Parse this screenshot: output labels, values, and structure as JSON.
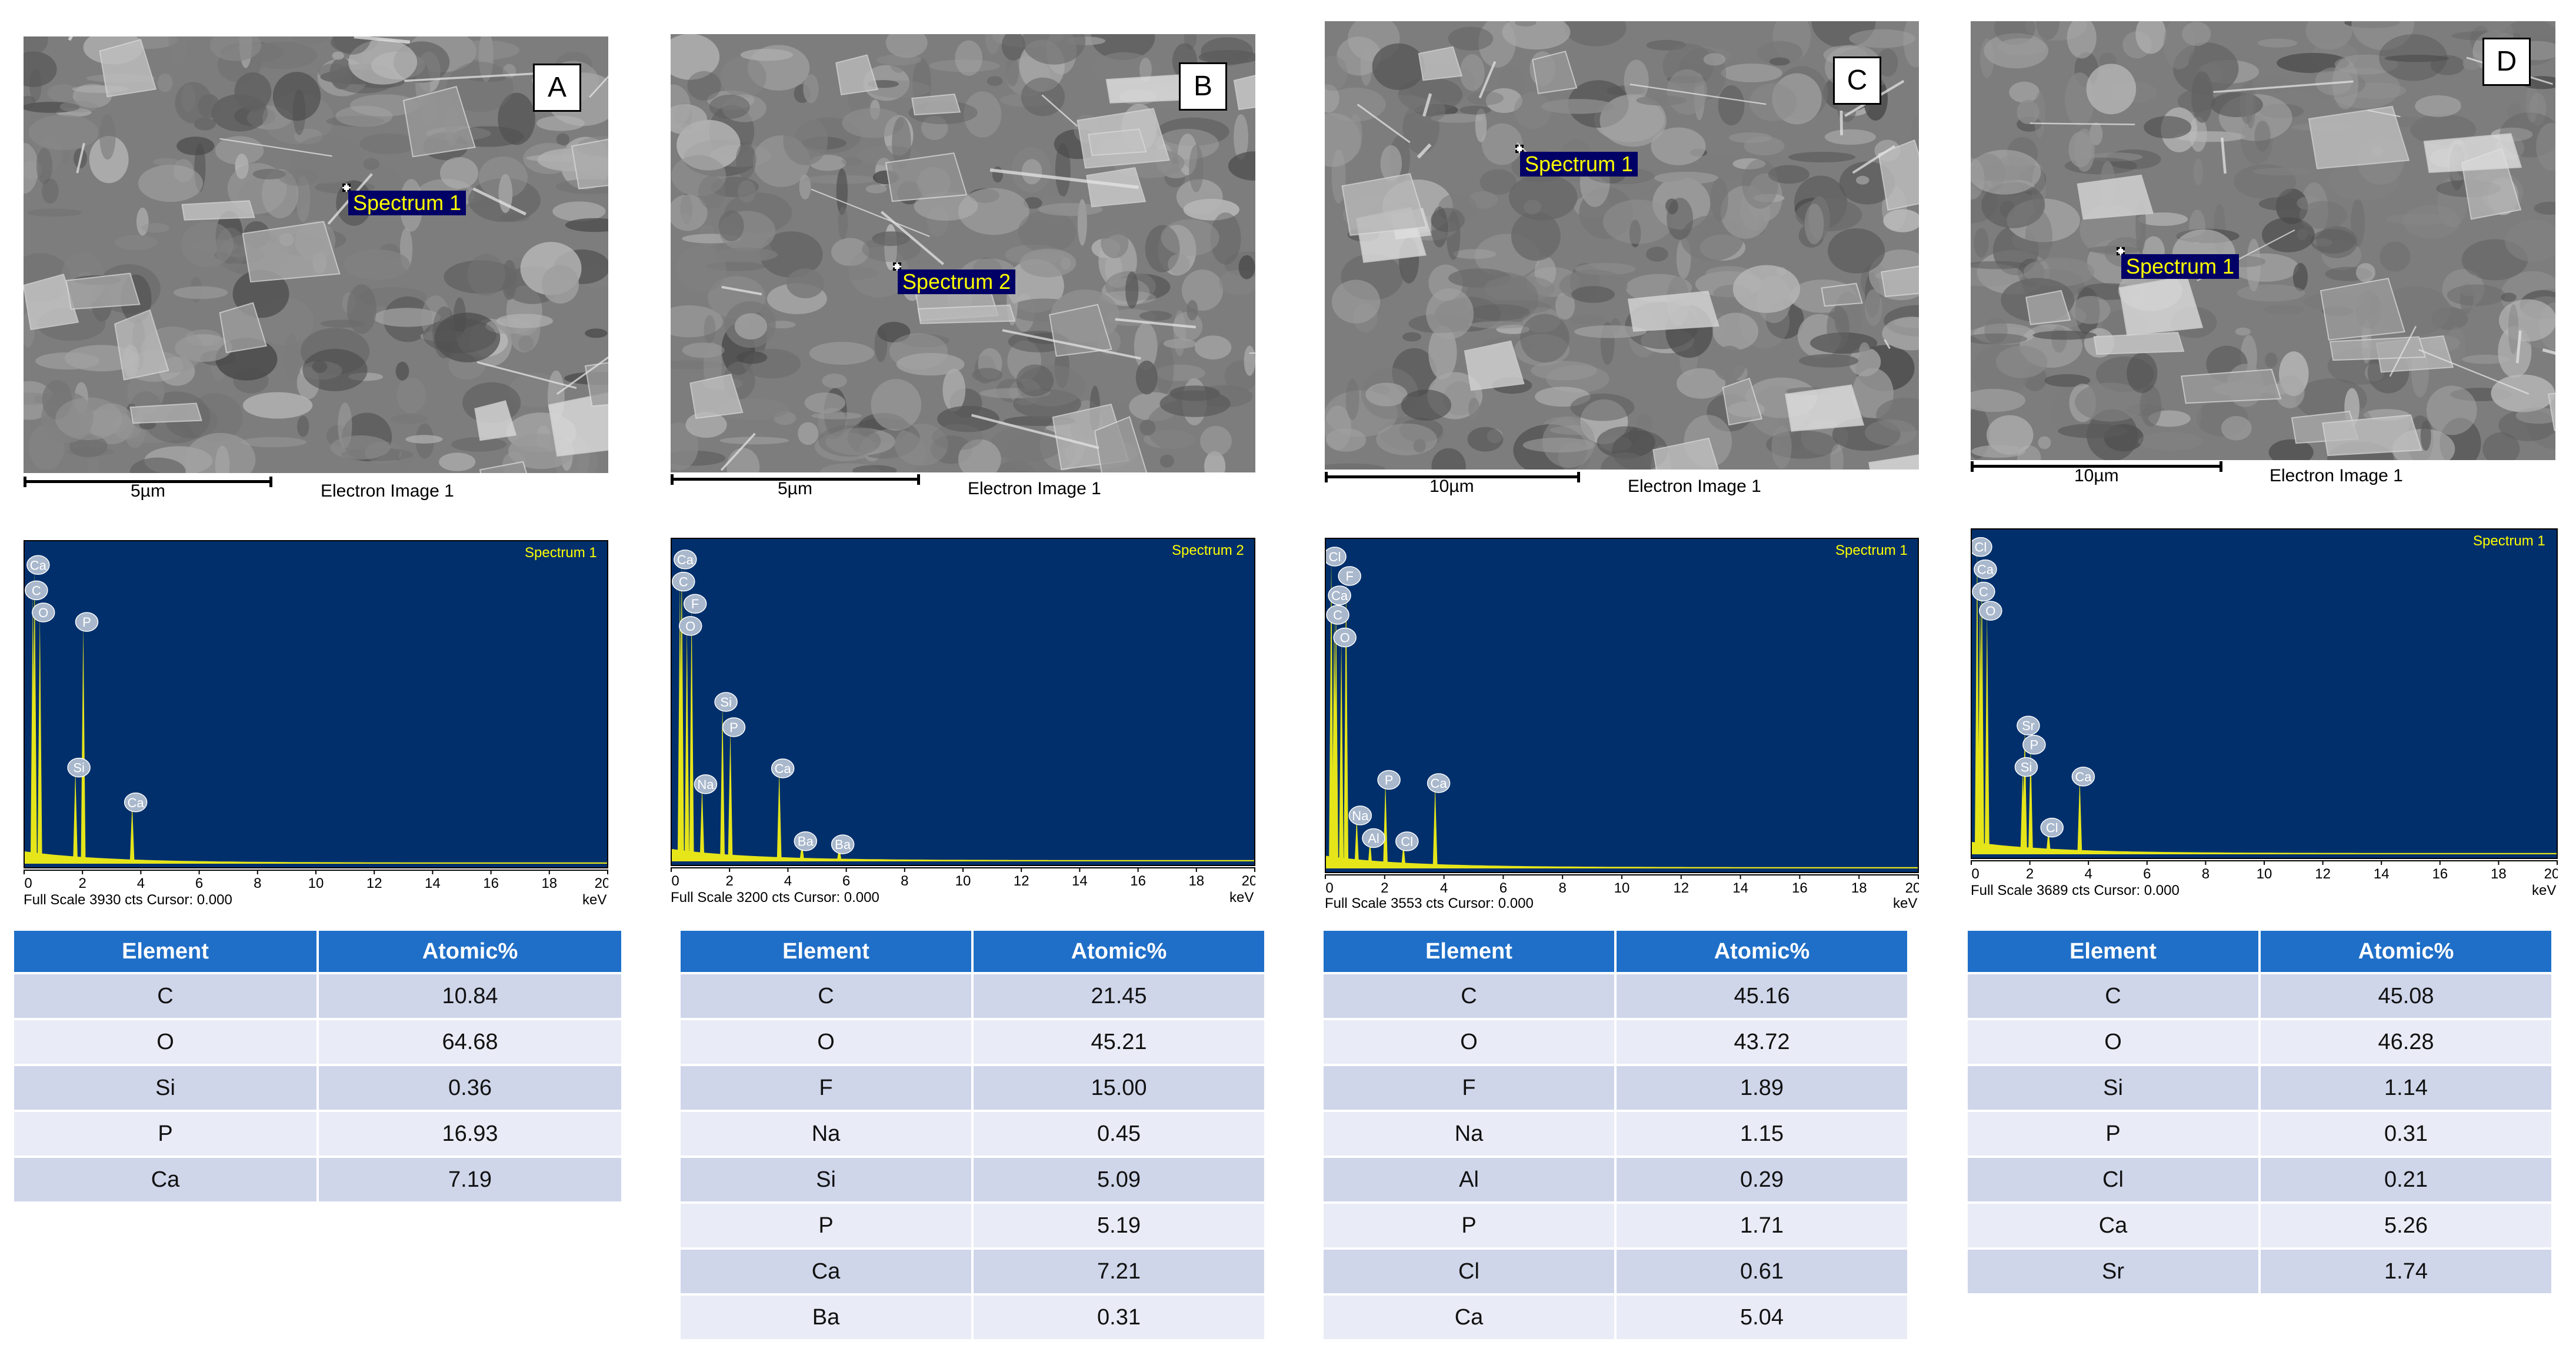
{
  "panels": [
    {
      "letter": "A",
      "spectrum_tag": "Spectrum 1",
      "scale_label": "5µm",
      "image_label": "Electron Image 1",
      "spectrum": {
        "title": "Spectrum 1",
        "footer": "Full Scale 3930 cts Cursor: 0.000",
        "unit": "keV",
        "peaks": [
          {
            "el": "Ca",
            "e": 0.34,
            "h": 0.94
          },
          {
            "el": "C",
            "e": 0.28,
            "h": 0.86
          },
          {
            "el": "O",
            "e": 0.52,
            "h": 0.79
          },
          {
            "el": "P",
            "e": 2.01,
            "h": 0.76
          },
          {
            "el": "Si",
            "e": 1.74,
            "h": 0.3
          },
          {
            "el": "Ca",
            "e": 3.69,
            "h": 0.19
          }
        ]
      },
      "table": {
        "headers": [
          "Element",
          "Atomic%"
        ],
        "rows": [
          [
            "C",
            "10.84"
          ],
          [
            "O",
            "64.68"
          ],
          [
            "Si",
            "0.36"
          ],
          [
            "P",
            "16.93"
          ],
          [
            "Ca",
            "7.19"
          ]
        ]
      }
    },
    {
      "letter": "B",
      "spectrum_tag": "Spectrum 2",
      "scale_label": "5µm",
      "image_label": "Electron Image 1",
      "spectrum": {
        "title": "Spectrum 2",
        "footer": "Full Scale 3200 cts Cursor: 0.000",
        "unit": "keV",
        "peaks": [
          {
            "el": "Ca",
            "e": 0.34,
            "h": 0.95
          },
          {
            "el": "C",
            "e": 0.28,
            "h": 0.88
          },
          {
            "el": "F",
            "e": 0.68,
            "h": 0.81
          },
          {
            "el": "O",
            "e": 0.52,
            "h": 0.74
          },
          {
            "el": "Si",
            "e": 1.74,
            "h": 0.5
          },
          {
            "el": "P",
            "e": 2.01,
            "h": 0.42
          },
          {
            "el": "Na",
            "e": 1.04,
            "h": 0.24
          },
          {
            "el": "Ca",
            "e": 3.69,
            "h": 0.29
          },
          {
            "el": "Ba",
            "e": 4.47,
            "h": 0.06
          },
          {
            "el": "Ba",
            "e": 5.75,
            "h": 0.05
          }
        ]
      },
      "table": {
        "headers": [
          "Element",
          "Atomic%"
        ],
        "rows": [
          [
            "C",
            "21.45"
          ],
          [
            "O",
            "45.21"
          ],
          [
            "F",
            "15.00"
          ],
          [
            "Na",
            "0.45"
          ],
          [
            "Si",
            "5.09"
          ],
          [
            "P",
            "5.19"
          ],
          [
            "Ca",
            "7.21"
          ],
          [
            "Ba",
            "0.31"
          ]
        ]
      }
    },
    {
      "letter": "C",
      "spectrum_tag": "Spectrum 1",
      "scale_label": "10µm",
      "image_label": "Electron Image 1",
      "spectrum": {
        "title": "Spectrum 1",
        "footer": "Full Scale 3553 cts Cursor: 0.000",
        "unit": "keV",
        "peaks": [
          {
            "el": "Cl",
            "e": 0.18,
            "h": 0.96
          },
          {
            "el": "F",
            "e": 0.68,
            "h": 0.9
          },
          {
            "el": "Ca",
            "e": 0.34,
            "h": 0.84
          },
          {
            "el": "C",
            "e": 0.28,
            "h": 0.78
          },
          {
            "el": "O",
            "e": 0.52,
            "h": 0.71
          },
          {
            "el": "P",
            "e": 2.01,
            "h": 0.27
          },
          {
            "el": "Ca",
            "e": 3.69,
            "h": 0.26
          },
          {
            "el": "Na",
            "e": 1.04,
            "h": 0.16
          },
          {
            "el": "Al",
            "e": 1.49,
            "h": 0.09
          },
          {
            "el": "Cl",
            "e": 2.62,
            "h": 0.08
          }
        ]
      },
      "table": {
        "headers": [
          "Element",
          "Atomic%"
        ],
        "rows": [
          [
            "C",
            "45.16"
          ],
          [
            "O",
            "43.72"
          ],
          [
            "F",
            "1.89"
          ],
          [
            "Na",
            "1.15"
          ],
          [
            "Al",
            "0.29"
          ],
          [
            "P",
            "1.71"
          ],
          [
            "Cl",
            "0.61"
          ],
          [
            "Ca",
            "5.04"
          ]
        ]
      }
    },
    {
      "letter": "D",
      "spectrum_tag": "Spectrum 1",
      "scale_label": "10µm",
      "image_label": "Electron Image 1",
      "spectrum": {
        "title": "Spectrum 1",
        "footer": "Full Scale 3689 cts Cursor: 0.000",
        "unit": "keV",
        "peaks": [
          {
            "el": "Cl",
            "e": 0.18,
            "h": 0.96
          },
          {
            "el": "Ca",
            "e": 0.34,
            "h": 0.89
          },
          {
            "el": "C",
            "e": 0.28,
            "h": 0.82
          },
          {
            "el": "O",
            "e": 0.52,
            "h": 0.76
          },
          {
            "el": "Sr",
            "e": 1.81,
            "h": 0.4
          },
          {
            "el": "P",
            "e": 2.01,
            "h": 0.34
          },
          {
            "el": "Si",
            "e": 1.74,
            "h": 0.27
          },
          {
            "el": "Ca",
            "e": 3.69,
            "h": 0.24
          },
          {
            "el": "Cl",
            "e": 2.62,
            "h": 0.08
          }
        ]
      },
      "table": {
        "headers": [
          "Element",
          "Atomic%"
        ],
        "rows": [
          [
            "C",
            "45.08"
          ],
          [
            "O",
            "46.28"
          ],
          [
            "Si",
            "1.14"
          ],
          [
            "P",
            "0.31"
          ],
          [
            "Cl",
            "0.21"
          ],
          [
            "Ca",
            "5.26"
          ],
          [
            "Sr",
            "1.74"
          ]
        ]
      }
    }
  ],
  "axis_ticks": [
    "0",
    "2",
    "4",
    "6",
    "8",
    "10",
    "12",
    "14",
    "16",
    "18",
    "20"
  ],
  "colors": {
    "spectrum_background": "#002f6c",
    "spectrum_fill": "#e5e51a",
    "header_blue": "#1f6fc8",
    "row_dark": "#cfd6ea",
    "row_light": "#e9ecf6",
    "label_bubble": "#a9b8cc"
  }
}
